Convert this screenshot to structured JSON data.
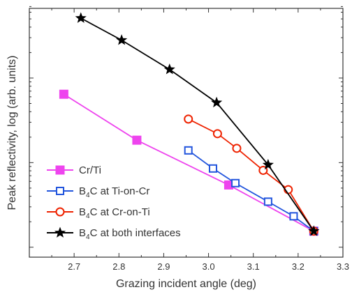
{
  "chart_data": {
    "type": "line",
    "title": "",
    "xlabel": "Grazing incident angle (deg)",
    "ylabel": "Peak reflectivity, log (arb. units)",
    "xlim": [
      2.6,
      3.3
    ],
    "ylim": [
      0,
      1
    ],
    "y_scale": "log",
    "y_tick_labels_shown": false,
    "x_ticks": [
      2.7,
      2.8,
      2.9,
      3.0,
      3.1,
      3.2,
      3.3
    ],
    "x_tick_labels": [
      "2.7",
      "2.8",
      "2.9",
      "3.0",
      "3.1",
      "3.2",
      "3.3"
    ],
    "legend_position": "bottom-left",
    "series": [
      {
        "name": "Cr/Ti",
        "name_main": "Cr/Ti",
        "name_sub": "",
        "name_rest": "",
        "color": "#ee44ee",
        "marker": "filled-square",
        "x": [
          2.677,
          2.84,
          3.045,
          3.235
        ],
        "y": [
          0.672,
          0.474,
          0.281,
          0.082
        ]
      },
      {
        "name": "B4C at Ti-on-Cr",
        "name_main": "B",
        "name_sub": "4",
        "name_rest": "C at Ti-on-Cr",
        "color": "#2255dd",
        "marker": "open-square",
        "x": [
          2.955,
          3.01,
          3.06,
          3.133,
          3.19,
          3.235
        ],
        "y": [
          0.43,
          0.352,
          0.289,
          0.209,
          0.146,
          0.082
        ]
      },
      {
        "name": "B4C at Cr-on-Ti",
        "name_main": "B",
        "name_sub": "4",
        "name_rest": "C at Cr-on-Ti",
        "color": "#ee2200",
        "marker": "open-circle",
        "x": [
          2.955,
          3.02,
          3.063,
          3.122,
          3.178,
          3.235
        ],
        "y": [
          0.565,
          0.502,
          0.439,
          0.344,
          0.261,
          0.082
        ]
      },
      {
        "name": "B4C at both interfaces",
        "name_main": "B",
        "name_sub": "4",
        "name_rest": "C at both interfaces",
        "color": "#000000",
        "marker": "filled-star",
        "x": [
          2.715,
          2.806,
          2.913,
          3.018,
          3.133,
          3.235
        ],
        "y": [
          1.0,
          0.905,
          0.779,
          0.636,
          0.368,
          0.082
        ]
      }
    ]
  }
}
